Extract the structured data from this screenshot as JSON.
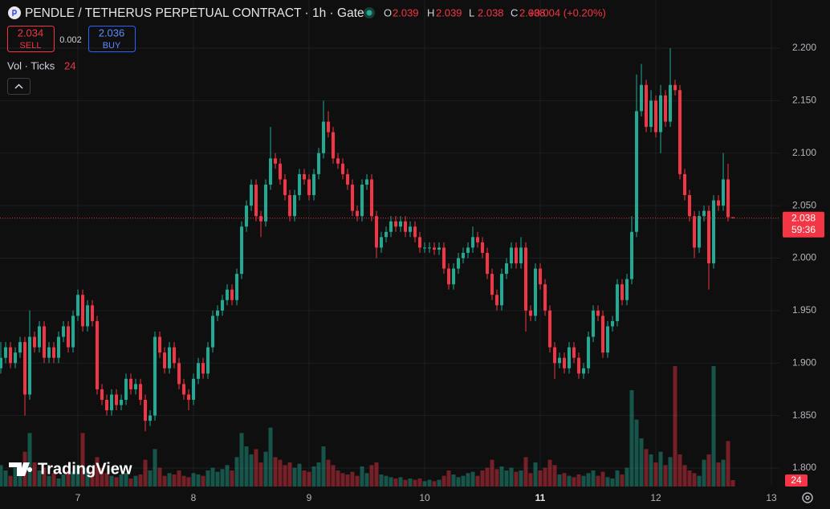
{
  "chart_data": {
    "type": "candlestick",
    "title": "PENDLE / TETHERUS PERPETUAL CONTRACT · 1h · Gate",
    "ohlc_legend": [
      {
        "key": "O",
        "value": 2.039
      },
      {
        "key": "H",
        "value": 2.039
      },
      {
        "key": "L",
        "value": 2.038
      },
      {
        "key": "C",
        "value": 2.038
      }
    ],
    "change": "+0.004 (+0.20%)",
    "sell": {
      "price": 2.034,
      "label": "SELL"
    },
    "spread": 0.002,
    "buy": {
      "price": 2.036,
      "label": "BUY"
    },
    "volume_title": "Vol · Ticks",
    "brand": "TradingView",
    "last_price": 2.038,
    "countdown": "59:36",
    "up_color": "#22ab94",
    "down_color": "#f23645",
    "grid": true,
    "ylim": [
      1.7839,
      2.2459
    ],
    "yticks": [
      {
        "value": 1.8,
        "label": "1.800"
      },
      {
        "value": 1.85,
        "label": "1.850"
      },
      {
        "value": 1.9,
        "label": "1.900"
      },
      {
        "value": 1.95,
        "label": "1.950"
      },
      {
        "value": 2.0,
        "label": "2.000"
      },
      {
        "value": 2.05,
        "label": "2.050"
      },
      {
        "value": 2.1,
        "label": "2.100"
      },
      {
        "value": 2.15,
        "label": "2.150"
      },
      {
        "value": 2.2,
        "label": "2.200"
      }
    ],
    "xlim": [
      -0.17,
      161.83
    ],
    "xticks": [
      {
        "value": 16,
        "label": "7"
      },
      {
        "value": 40,
        "label": "8"
      },
      {
        "value": 64,
        "label": "9"
      },
      {
        "value": 88,
        "label": "10"
      },
      {
        "value": 112,
        "label": "11"
      },
      {
        "value": 136,
        "label": "12"
      },
      {
        "value": 160,
        "label": "13"
      }
    ],
    "candles": [
      [
        1.895,
        1.92,
        1.89,
        1.905
      ],
      [
        1.905,
        1.92,
        1.9,
        1.915
      ],
      [
        1.915,
        1.92,
        1.895,
        1.9
      ],
      [
        1.9,
        1.915,
        1.895,
        1.91
      ],
      [
        1.91,
        1.925,
        1.905,
        1.92
      ],
      [
        1.92,
        1.925,
        1.85,
        1.87
      ],
      [
        1.87,
        1.95,
        1.865,
        1.925
      ],
      [
        1.925,
        1.93,
        1.91,
        1.915
      ],
      [
        1.915,
        1.94,
        1.91,
        1.935
      ],
      [
        1.935,
        1.94,
        1.9,
        1.905
      ],
      [
        1.905,
        1.92,
        1.9,
        1.915
      ],
      [
        1.915,
        1.92,
        1.9,
        1.905
      ],
      [
        1.905,
        1.93,
        1.9,
        1.925
      ],
      [
        1.925,
        1.94,
        1.92,
        1.935
      ],
      [
        1.935,
        1.94,
        1.91,
        1.915
      ],
      [
        1.915,
        1.95,
        1.91,
        1.945
      ],
      [
        1.945,
        1.97,
        1.94,
        1.965
      ],
      [
        1.965,
        1.97,
        1.93,
        1.935
      ],
      [
        1.935,
        1.96,
        1.93,
        1.955
      ],
      [
        1.955,
        1.96,
        1.935,
        1.94
      ],
      [
        1.94,
        1.945,
        1.87,
        1.875
      ],
      [
        1.875,
        1.88,
        1.86,
        1.865
      ],
      [
        1.865,
        1.87,
        1.85,
        1.855
      ],
      [
        1.855,
        1.875,
        1.85,
        1.87
      ],
      [
        1.87,
        1.875,
        1.855,
        1.86
      ],
      [
        1.86,
        1.87,
        1.855,
        1.865
      ],
      [
        1.865,
        1.89,
        1.86,
        1.885
      ],
      [
        1.885,
        1.89,
        1.87,
        1.875
      ],
      [
        1.875,
        1.885,
        1.87,
        1.88
      ],
      [
        1.88,
        1.885,
        1.86,
        1.865
      ],
      [
        1.865,
        1.87,
        1.835,
        1.845
      ],
      [
        1.845,
        1.855,
        1.84,
        1.85
      ],
      [
        1.85,
        1.93,
        1.845,
        1.925
      ],
      [
        1.925,
        1.93,
        1.905,
        1.91
      ],
      [
        1.91,
        1.915,
        1.89,
        1.895
      ],
      [
        1.895,
        1.92,
        1.89,
        1.915
      ],
      [
        1.915,
        1.92,
        1.895,
        1.9
      ],
      [
        1.9,
        1.905,
        1.875,
        1.88
      ],
      [
        1.88,
        1.885,
        1.865,
        1.87
      ],
      [
        1.87,
        1.875,
        1.855,
        1.865
      ],
      [
        1.865,
        1.89,
        1.86,
        1.885
      ],
      [
        1.885,
        1.905,
        1.88,
        1.9
      ],
      [
        1.9,
        1.905,
        1.885,
        1.89
      ],
      [
        1.89,
        1.92,
        1.885,
        1.915
      ],
      [
        1.915,
        1.95,
        1.91,
        1.945
      ],
      [
        1.945,
        1.955,
        1.94,
        1.95
      ],
      [
        1.95,
        1.965,
        1.945,
        1.96
      ],
      [
        1.96,
        1.975,
        1.955,
        1.97
      ],
      [
        1.97,
        1.975,
        1.955,
        1.96
      ],
      [
        1.96,
        1.99,
        1.955,
        1.985
      ],
      [
        1.985,
        2.035,
        1.98,
        2.03
      ],
      [
        2.03,
        2.055,
        2.025,
        2.05
      ],
      [
        2.05,
        2.075,
        2.045,
        2.07
      ],
      [
        2.07,
        2.075,
        2.035,
        2.04
      ],
      [
        2.04,
        2.045,
        2.02,
        2.035
      ],
      [
        2.035,
        2.075,
        2.03,
        2.07
      ],
      [
        2.07,
        2.125,
        2.065,
        2.095
      ],
      [
        2.095,
        2.1,
        2.085,
        2.09
      ],
      [
        2.09,
        2.095,
        2.07,
        2.075
      ],
      [
        2.075,
        2.08,
        2.055,
        2.06
      ],
      [
        2.06,
        2.065,
        2.035,
        2.04
      ],
      [
        2.04,
        2.065,
        2.035,
        2.06
      ],
      [
        2.06,
        2.085,
        2.055,
        2.08
      ],
      [
        2.08,
        2.085,
        2.07,
        2.075
      ],
      [
        2.075,
        2.08,
        2.055,
        2.06
      ],
      [
        2.06,
        2.085,
        2.055,
        2.08
      ],
      [
        2.08,
        2.105,
        2.075,
        2.1
      ],
      [
        2.1,
        2.15,
        2.095,
        2.13
      ],
      [
        2.13,
        2.14,
        2.115,
        2.12
      ],
      [
        2.12,
        2.125,
        2.09,
        2.095
      ],
      [
        2.095,
        2.1,
        2.085,
        2.09
      ],
      [
        2.09,
        2.095,
        2.075,
        2.08
      ],
      [
        2.08,
        2.085,
        2.065,
        2.07
      ],
      [
        2.07,
        2.075,
        2.04,
        2.045
      ],
      [
        2.045,
        2.05,
        2.035,
        2.04
      ],
      [
        2.04,
        2.075,
        2.035,
        2.07
      ],
      [
        2.07,
        2.08,
        2.065,
        2.075
      ],
      [
        2.075,
        2.08,
        2.035,
        2.04
      ],
      [
        2.04,
        2.045,
        2.0,
        2.01
      ],
      [
        2.01,
        2.025,
        2.005,
        2.02
      ],
      [
        2.02,
        2.03,
        2.015,
        2.025
      ],
      [
        2.025,
        2.04,
        2.02,
        2.035
      ],
      [
        2.035,
        2.04,
        2.025,
        2.03
      ],
      [
        2.03,
        2.04,
        2.025,
        2.035
      ],
      [
        2.035,
        2.04,
        2.02,
        2.025
      ],
      [
        2.025,
        2.035,
        2.02,
        2.03
      ],
      [
        2.03,
        2.035,
        2.015,
        2.02
      ],
      [
        2.02,
        2.025,
        2.005,
        2.01
      ],
      [
        2.01,
        2.015,
        2.005,
        2.01
      ],
      [
        2.01,
        2.015,
        2.005,
        2.01
      ],
      [
        2.01,
        2.015,
        2.003,
        2.008
      ],
      [
        2.008,
        2.015,
        2.003,
        2.01
      ],
      [
        2.01,
        2.015,
        1.985,
        1.99
      ],
      [
        1.99,
        1.995,
        1.97,
        1.975
      ],
      [
        1.975,
        1.995,
        1.97,
        1.99
      ],
      [
        1.99,
        2.005,
        1.985,
        2.0
      ],
      [
        2.0,
        2.01,
        1.995,
        2.005
      ],
      [
        2.005,
        2.015,
        2.0,
        2.01
      ],
      [
        2.01,
        2.03,
        2.005,
        2.02
      ],
      [
        2.02,
        2.025,
        2.01,
        2.015
      ],
      [
        2.015,
        2.02,
        2.0,
        2.005
      ],
      [
        2.005,
        2.01,
        1.98,
        1.985
      ],
      [
        1.985,
        1.99,
        1.96,
        1.965
      ],
      [
        1.965,
        1.97,
        1.95,
        1.955
      ],
      [
        1.955,
        1.99,
        1.95,
        1.985
      ],
      [
        1.985,
        2.0,
        1.98,
        1.995
      ],
      [
        1.995,
        2.015,
        1.99,
        2.01
      ],
      [
        2.01,
        2.015,
        1.99,
        1.995
      ],
      [
        1.995,
        2.02,
        1.99,
        2.01
      ],
      [
        2.01,
        2.015,
        1.93,
        1.95
      ],
      [
        1.95,
        1.955,
        1.94,
        1.945
      ],
      [
        1.945,
        1.995,
        1.94,
        1.99
      ],
      [
        1.99,
        1.995,
        1.97,
        1.975
      ],
      [
        1.975,
        1.98,
        1.945,
        1.95
      ],
      [
        1.95,
        1.955,
        1.91,
        1.915
      ],
      [
        1.915,
        1.92,
        1.885,
        1.9
      ],
      [
        1.9,
        1.91,
        1.895,
        1.905
      ],
      [
        1.905,
        1.91,
        1.89,
        1.895
      ],
      [
        1.895,
        1.92,
        1.89,
        1.915
      ],
      [
        1.915,
        1.92,
        1.9,
        1.905
      ],
      [
        1.905,
        1.91,
        1.885,
        1.89
      ],
      [
        1.89,
        1.9,
        1.885,
        1.895
      ],
      [
        1.895,
        1.93,
        1.89,
        1.925
      ],
      [
        1.925,
        1.955,
        1.92,
        1.95
      ],
      [
        1.95,
        1.955,
        1.94,
        1.945
      ],
      [
        1.945,
        1.95,
        1.905,
        1.91
      ],
      [
        1.91,
        1.94,
        1.905,
        1.935
      ],
      [
        1.935,
        1.945,
        1.93,
        1.94
      ],
      [
        1.94,
        1.98,
        1.935,
        1.975
      ],
      [
        1.975,
        1.98,
        1.955,
        1.96
      ],
      [
        1.96,
        1.985,
        1.955,
        1.98
      ],
      [
        1.98,
        2.04,
        1.975,
        2.025
      ],
      [
        2.025,
        2.175,
        2.02,
        2.14
      ],
      [
        2.14,
        2.185,
        2.135,
        2.165
      ],
      [
        2.165,
        2.17,
        2.12,
        2.125
      ],
      [
        2.125,
        2.16,
        2.12,
        2.15
      ],
      [
        2.15,
        2.155,
        2.115,
        2.12
      ],
      [
        2.12,
        2.165,
        2.1,
        2.155
      ],
      [
        2.155,
        2.16,
        2.125,
        2.13
      ],
      [
        2.13,
        2.2,
        2.125,
        2.165
      ],
      [
        2.165,
        2.17,
        2.155,
        2.16
      ],
      [
        2.16,
        2.165,
        2.075,
        2.08
      ],
      [
        2.08,
        2.085,
        2.055,
        2.06
      ],
      [
        2.06,
        2.065,
        2.035,
        2.04
      ],
      [
        2.04,
        2.045,
        2.0,
        2.01
      ],
      [
        2.01,
        2.045,
        2.005,
        2.04
      ],
      [
        2.04,
        2.05,
        2.035,
        2.045
      ],
      [
        2.045,
        2.05,
        1.97,
        1.995
      ],
      [
        1.995,
        2.06,
        1.99,
        2.055
      ],
      [
        2.055,
        2.06,
        2.045,
        2.05
      ],
      [
        2.05,
        2.1,
        2.045,
        2.075
      ],
      [
        2.075,
        2.09,
        2.035,
        2.039
      ],
      [
        2.039,
        2.039,
        2.038,
        2.038
      ]
    ],
    "volumes": [
      80,
      60,
      40,
      70,
      50,
      130,
      200,
      90,
      60,
      70,
      40,
      50,
      30,
      45,
      60,
      55,
      80,
      200,
      70,
      60,
      110,
      70,
      50,
      40,
      35,
      45,
      50,
      30,
      40,
      45,
      100,
      60,
      140,
      70,
      40,
      50,
      45,
      60,
      40,
      35,
      50,
      45,
      40,
      60,
      70,
      55,
      65,
      80,
      60,
      110,
      200,
      150,
      120,
      140,
      90,
      130,
      220,
      110,
      100,
      80,
      90,
      70,
      85,
      60,
      55,
      75,
      90,
      150,
      100,
      80,
      60,
      50,
      45,
      55,
      40,
      75,
      50,
      80,
      90,
      45,
      40,
      35,
      30,
      35,
      25,
      30,
      25,
      30,
      20,
      25,
      20,
      25,
      40,
      60,
      45,
      35,
      40,
      50,
      55,
      40,
      60,
      70,
      100,
      65,
      75,
      60,
      70,
      55,
      60,
      110,
      50,
      90,
      60,
      70,
      100,
      80,
      45,
      50,
      40,
      35,
      45,
      40,
      50,
      60,
      40,
      55,
      35,
      30,
      60,
      45,
      70,
      360,
      250,
      180,
      140,
      120,
      90,
      130,
      80,
      110,
      450,
      120,
      80,
      60,
      50,
      40,
      100,
      120,
      450,
      90,
      100,
      170,
      24
    ]
  }
}
